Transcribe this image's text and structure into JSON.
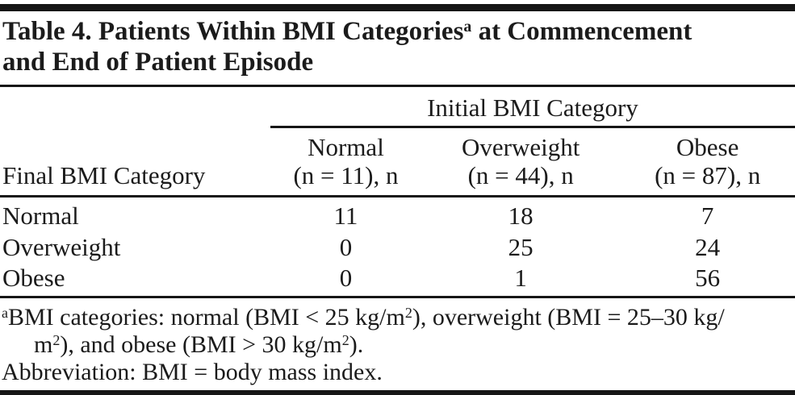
{
  "title": {
    "line1_main": "Table 4. Patients Within BMI Categories",
    "marker": "a",
    "line1_rest": " at Commencement",
    "line2": "and End of Patient Episode"
  },
  "table": {
    "spanner": "Initial BMI Category",
    "row_header_label": "Final BMI Category",
    "columns": [
      {
        "name": "Normal",
        "sub": "(n = 11), n"
      },
      {
        "name": "Overweight",
        "sub": "(n = 44), n"
      },
      {
        "name": "Obese",
        "sub": "(n = 87), n"
      }
    ],
    "rows": [
      {
        "label": "Normal",
        "values": [
          "11",
          "18",
          "7"
        ]
      },
      {
        "label": "Overweight",
        "values": [
          "0",
          "25",
          "24"
        ]
      },
      {
        "label": "Obese",
        "values": [
          "0",
          "1",
          "56"
        ]
      }
    ]
  },
  "footnotes": {
    "bmi": {
      "marker": "a",
      "l1_t1": "BMI categories: normal (BMI < 25 kg/m",
      "l1_sup": "2",
      "l1_t2": "), overweight (BMI = 25–30 kg/",
      "l2_t1": "m",
      "l2_sup1": "2",
      "l2_t2": "), and obese (BMI > 30 kg/m",
      "l2_sup2": "2",
      "l2_t3": ")."
    },
    "abbreviation": "Abbreviation: BMI = body mass index."
  },
  "colors": {
    "text": "#1b1b1b",
    "rule": "#161616",
    "background": "#ffffff"
  }
}
